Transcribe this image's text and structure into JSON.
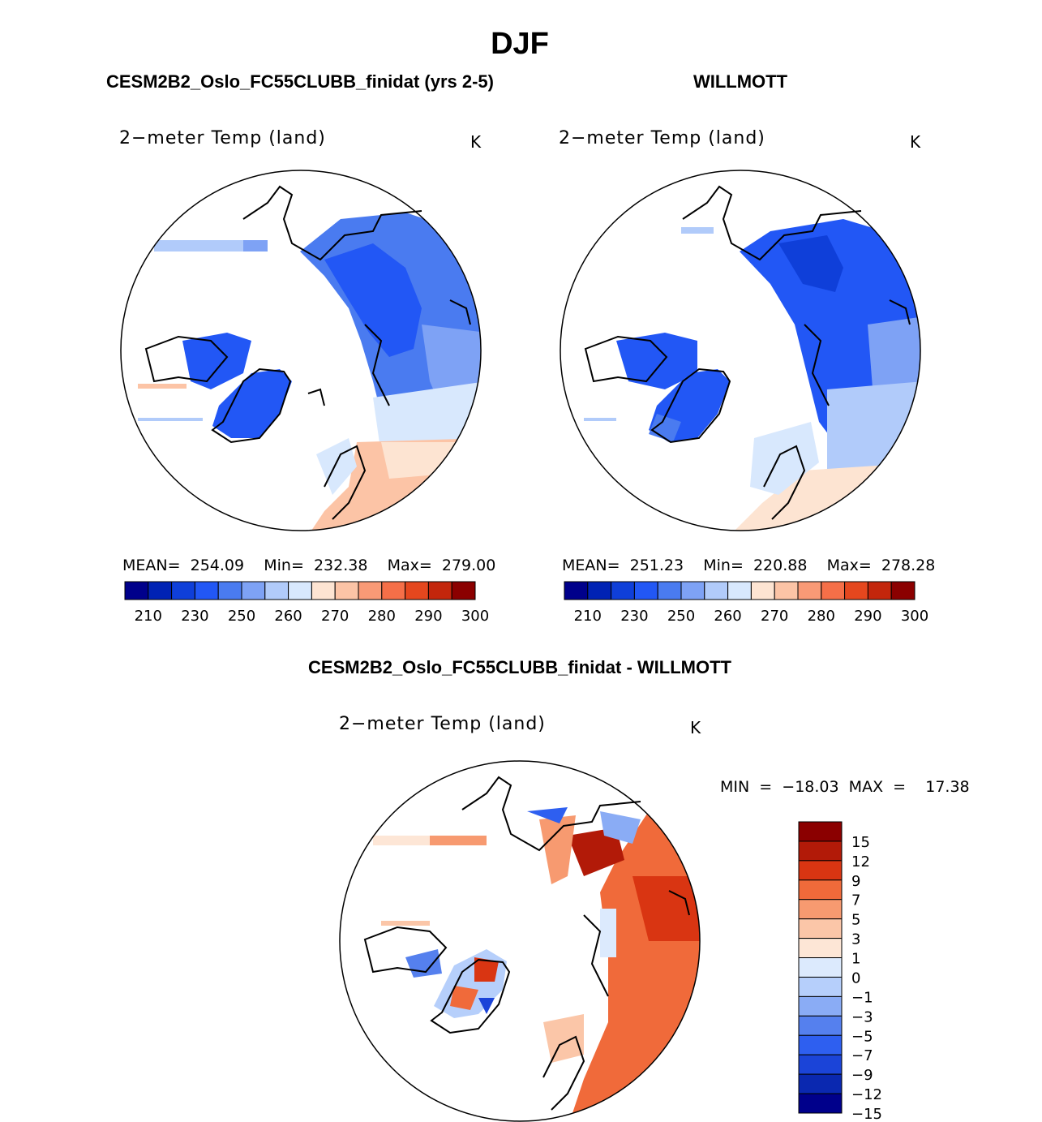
{
  "chart_data": {
    "type": "heatmap",
    "title": "DJF",
    "panels": [
      {
        "heading": "CESM2B2_Oslo_FC55CLUBB_finidat (yrs 2-5)",
        "variable": "2−meter Temp (land)",
        "units": "K",
        "stats_text": "MEAN=  254.09    Min=  232.38    Max=  279.00",
        "mean": 254.09,
        "min": 232.38,
        "max": 279.0,
        "colorbar_ticks": [
          "210",
          "230",
          "250",
          "260",
          "270",
          "280",
          "290",
          "300"
        ]
      },
      {
        "heading": "WILLMOTT",
        "variable": "2−meter Temp (land)",
        "units": "K",
        "stats_text": "MEAN=  251.23    Min=  220.88    Max=  278.28",
        "mean": 251.23,
        "min": 220.88,
        "max": 278.28,
        "colorbar_ticks": [
          "210",
          "230",
          "250",
          "260",
          "270",
          "280",
          "290",
          "300"
        ]
      },
      {
        "heading": "CESM2B2_Oslo_FC55CLUBB_finidat - WILLMOTT",
        "variable": "2−meter Temp (land)",
        "units": "K",
        "stats_text": "MIN  =  −18.03  MAX  =    17.38",
        "min": -18.03,
        "max": 17.38,
        "colorbar_ticks": [
          "15",
          "12",
          "9",
          "7",
          "5",
          "3",
          "1",
          "0",
          "−1",
          "−3",
          "−5",
          "−7",
          "−9",
          "−12",
          "−15"
        ]
      }
    ],
    "abs_colors": [
      "#00008b",
      "#0022b4",
      "#0f3fd9",
      "#2257f5",
      "#4a7bf0",
      "#7ea2f5",
      "#b1cbfa",
      "#d8e8fd",
      "#fde4d2",
      "#fcc4a6",
      "#f99a76",
      "#f56f48",
      "#e5471e",
      "#c3260c",
      "#8b0000"
    ],
    "diff_colors": [
      "#8b0000",
      "#b21a08",
      "#d93512",
      "#f06a3a",
      "#f79a70",
      "#fbc6a8",
      "#fde6d6",
      "#dceafd",
      "#b6cffb",
      "#8aacf5",
      "#5580ee",
      "#2e5ff0",
      "#1b44d8",
      "#0a28b0",
      "#00008b"
    ]
  }
}
